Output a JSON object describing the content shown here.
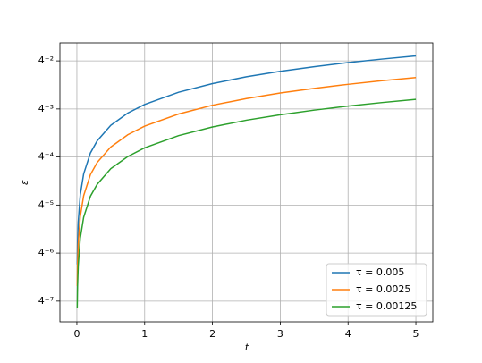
{
  "chart_data": {
    "type": "line",
    "x_label": "t",
    "y_label": "ε",
    "x": [
      0.005,
      0.01,
      0.02,
      0.05,
      0.1,
      0.2,
      0.3,
      0.5,
      0.75,
      1,
      1.5,
      2,
      2.5,
      3,
      3.5,
      4,
      4.5,
      5
    ],
    "series": [
      {
        "name": "τ = 0.005",
        "color": "#1f77b4",
        "values": [
          0.000177,
          0.000324,
          0.000592,
          0.00131,
          0.0024,
          0.00439,
          0.00624,
          0.00974,
          0.01386,
          0.0178,
          0.0253,
          0.0325,
          0.0395,
          0.0463,
          0.0529,
          0.0595,
          0.0659,
          0.0722
        ]
      },
      {
        "name": "τ = 0.0025",
        "color": "#ff7f0e",
        "values": [
          9.47e-05,
          0.000173,
          0.000317,
          0.000701,
          0.00128,
          0.00235,
          0.00334,
          0.00521,
          0.00742,
          0.00952,
          0.0135,
          0.0174,
          0.0211,
          0.0248,
          0.0283,
          0.0318,
          0.0353,
          0.0386
        ]
      },
      {
        "name": "τ = 0.00125",
        "color": "#2ca02c",
        "values": [
          5.06e-05,
          9.27e-05,
          0.000169,
          0.000375,
          0.000686,
          0.00126,
          0.00178,
          0.00279,
          0.00396,
          0.00509,
          0.00724,
          0.0093,
          0.0113,
          0.0132,
          0.0151,
          0.017,
          0.0188,
          0.0206
        ]
      }
    ],
    "xlim": [
      -0.25,
      5.25
    ],
    "xticks": [
      0,
      1,
      2,
      3,
      4,
      5
    ],
    "ylim": [
      3.36e-05,
      0.105
    ],
    "y_scale": "log",
    "yticks": [
      {
        "value": 6.103515625e-05,
        "label": "4⁻⁷"
      },
      {
        "value": 0.000244140625,
        "label": "4⁻⁶"
      },
      {
        "value": 0.0009765625,
        "label": "4⁻⁵"
      },
      {
        "value": 0.00390625,
        "label": "4⁻⁴"
      },
      {
        "value": 0.015625,
        "label": "4⁻³"
      },
      {
        "value": 0.0625,
        "label": "4⁻²"
      }
    ],
    "grid": true,
    "legend": "lower right"
  }
}
